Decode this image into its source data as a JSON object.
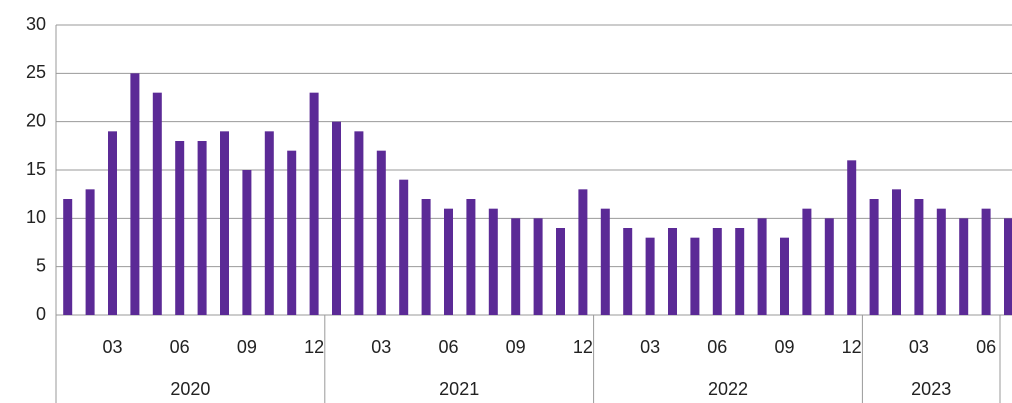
{
  "chart_data": {
    "type": "bar",
    "categories": [
      null,
      null,
      "03",
      null,
      null,
      "06",
      null,
      null,
      "09",
      null,
      null,
      "12",
      null,
      null,
      "03",
      null,
      null,
      "06",
      null,
      null,
      "09",
      null,
      null,
      "12",
      null,
      null,
      "03",
      null,
      null,
      "06",
      null,
      null,
      "09",
      null,
      null,
      "12",
      null,
      null,
      "03",
      null,
      null,
      "06",
      null
    ],
    "category_years": [
      "2020",
      "2020",
      "2020",
      "2020",
      "2020",
      "2020",
      "2020",
      "2020",
      "2020",
      "2020",
      "2020",
      "2020",
      "2021",
      "2021",
      "2021",
      "2021",
      "2021",
      "2021",
      "2021",
      "2021",
      "2021",
      "2021",
      "2021",
      "2021",
      "2022",
      "2022",
      "2022",
      "2022",
      "2022",
      "2022",
      "2022",
      "2022",
      "2022",
      "2022",
      "2022",
      "2022",
      "2023",
      "2023",
      "2023",
      "2023",
      "2023",
      "2023",
      "2023"
    ],
    "values": [
      12,
      13,
      19,
      25,
      23,
      18,
      18,
      19,
      15,
      19,
      17,
      23,
      20,
      19,
      17,
      14,
      12,
      11,
      12,
      11,
      10,
      10,
      9,
      13,
      11,
      9,
      8,
      9,
      8,
      9,
      9,
      10,
      8,
      11,
      10,
      16,
      12,
      13,
      12,
      11,
      10,
      11,
      10
    ],
    "color": "#5b2a96",
    "ylim": [
      0,
      30
    ],
    "yticks": [
      0,
      5,
      10,
      15,
      20,
      25,
      30
    ],
    "grid": true
  }
}
